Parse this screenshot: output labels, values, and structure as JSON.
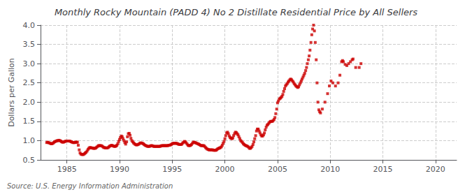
{
  "chart_data": {
    "type": "scatter",
    "title": "Monthly Rocky Mountain (PADD 4) No 2 Distillate Residential Price by All Sellers",
    "ylabel": "Dollars per Gallon",
    "annotation": "Source: U.S. Energy Information Administration",
    "color": "#cc0000",
    "marker": "square",
    "grid": true,
    "xlim": [
      1982.5,
      2022
    ],
    "ylim": [
      0.5,
      4.0
    ],
    "xticks": [
      1985,
      1990,
      1995,
      2000,
      2005,
      2010,
      2015,
      2020
    ],
    "yticks": [
      0.5,
      {
        "value": 1,
        "label": "1.0"
      },
      1.5,
      {
        "value": 2,
        "label": "2.0"
      },
      2.5,
      {
        "value": 3,
        "label": "3.0"
      },
      3.5,
      {
        "value": 4,
        "label": "4.0"
      }
    ],
    "x": [
      1983.08,
      1983.17,
      1983.25,
      1983.33,
      1983.42,
      1983.5,
      1983.58,
      1983.67,
      1983.75,
      1983.83,
      1983.92,
      1984.0,
      1984.08,
      1984.17,
      1984.25,
      1984.33,
      1984.42,
      1984.5,
      1984.58,
      1984.67,
      1984.75,
      1984.83,
      1984.92,
      1985.0,
      1985.08,
      1985.17,
      1985.25,
      1985.33,
      1985.42,
      1985.5,
      1985.58,
      1985.67,
      1985.75,
      1985.83,
      1985.92,
      1986.0,
      1986.08,
      1986.17,
      1986.25,
      1986.33,
      1986.42,
      1986.5,
      1986.58,
      1986.67,
      1986.75,
      1986.83,
      1986.92,
      1987.0,
      1987.08,
      1987.17,
      1987.25,
      1987.33,
      1987.42,
      1987.5,
      1987.58,
      1987.67,
      1987.75,
      1987.83,
      1987.92,
      1988.0,
      1988.08,
      1988.17,
      1988.25,
      1988.33,
      1988.42,
      1988.5,
      1988.58,
      1988.67,
      1988.75,
      1988.83,
      1988.92,
      1989.0,
      1989.08,
      1989.17,
      1989.25,
      1989.33,
      1989.42,
      1989.5,
      1989.58,
      1989.67,
      1989.75,
      1989.83,
      1989.92,
      1990.0,
      1990.08,
      1990.17,
      1990.25,
      1990.33,
      1990.42,
      1990.5,
      1990.58,
      1990.67,
      1990.75,
      1990.83,
      1990.92,
      1991.0,
      1991.08,
      1991.17,
      1991.25,
      1991.33,
      1991.42,
      1991.5,
      1991.58,
      1991.67,
      1991.75,
      1991.83,
      1991.92,
      1992.0,
      1992.08,
      1992.17,
      1992.25,
      1992.33,
      1992.42,
      1992.5,
      1992.58,
      1992.67,
      1992.75,
      1992.83,
      1992.92,
      1993.0,
      1993.08,
      1993.17,
      1993.25,
      1993.33,
      1993.42,
      1993.5,
      1993.58,
      1993.67,
      1993.75,
      1993.83,
      1993.92,
      1994.0,
      1994.08,
      1994.17,
      1994.25,
      1994.33,
      1994.42,
      1994.5,
      1994.58,
      1994.67,
      1994.75,
      1994.83,
      1994.92,
      1995.0,
      1995.08,
      1995.17,
      1995.25,
      1995.33,
      1995.42,
      1995.5,
      1995.58,
      1995.67,
      1995.75,
      1995.83,
      1995.92,
      1996.0,
      1996.08,
      1996.17,
      1996.25,
      1996.33,
      1996.42,
      1996.5,
      1996.58,
      1996.67,
      1996.75,
      1996.83,
      1996.92,
      1997.0,
      1997.08,
      1997.17,
      1997.25,
      1997.33,
      1997.42,
      1997.5,
      1997.58,
      1997.67,
      1997.75,
      1997.83,
      1997.92,
      1998.0,
      1998.08,
      1998.17,
      1998.25,
      1998.33,
      1998.42,
      1998.5,
      1998.58,
      1998.67,
      1998.75,
      1998.83,
      1998.92,
      1999.0,
      1999.08,
      1999.17,
      1999.25,
      1999.33,
      1999.42,
      1999.5,
      1999.58,
      1999.67,
      1999.75,
      1999.83,
      1999.92,
      2000.0,
      2000.08,
      2000.17,
      2000.25,
      2000.33,
      2000.42,
      2000.5,
      2000.58,
      2000.67,
      2000.75,
      2000.83,
      2000.92,
      2001.0,
      2001.08,
      2001.17,
      2001.25,
      2001.33,
      2001.42,
      2001.5,
      2001.58,
      2001.67,
      2001.75,
      2001.83,
      2001.92,
      2002.0,
      2002.08,
      2002.17,
      2002.25,
      2002.33,
      2002.42,
      2002.5,
      2002.58,
      2002.67,
      2002.75,
      2002.83,
      2002.92,
      2003.0,
      2003.08,
      2003.17,
      2003.25,
      2003.33,
      2003.42,
      2003.5,
      2003.58,
      2003.67,
      2003.75,
      2003.83,
      2003.92,
      2004.0,
      2004.08,
      2004.17,
      2004.25,
      2004.33,
      2004.42,
      2004.5,
      2004.58,
      2004.67,
      2004.75,
      2004.83,
      2004.92,
      2005.0,
      2005.08,
      2005.17,
      2005.25,
      2005.33,
      2005.42,
      2005.5,
      2005.58,
      2005.67,
      2005.75,
      2005.83,
      2005.92,
      2006.0,
      2006.08,
      2006.17,
      2006.25,
      2006.33,
      2006.42,
      2006.5,
      2006.58,
      2006.67,
      2006.75,
      2006.83,
      2006.92,
      2007.0,
      2007.08,
      2007.17,
      2007.25,
      2007.33,
      2007.42,
      2007.5,
      2007.58,
      2007.67,
      2007.75,
      2007.83,
      2007.92,
      2008.0,
      2008.08,
      2008.17,
      2008.25,
      2008.33,
      2008.42,
      2008.5,
      2008.58,
      2008.67,
      2008.75,
      2008.83,
      2008.92,
      2009.0,
      2009.08,
      2009.25,
      2009.5,
      2009.75,
      2009.92,
      2010.08,
      2010.25,
      2010.5,
      2010.75,
      2010.92,
      2011.08,
      2011.17,
      2011.25,
      2011.42,
      2011.58,
      2011.75,
      2011.92,
      2012.08,
      2012.17,
      2012.42,
      2012.75,
      2012.92
    ],
    "values": [
      0.95,
      0.96,
      0.95,
      0.94,
      0.93,
      0.92,
      0.92,
      0.93,
      0.95,
      0.97,
      0.98,
      0.99,
      1.0,
      1.0,
      1.01,
      1.0,
      0.99,
      0.97,
      0.96,
      0.96,
      0.97,
      0.98,
      0.99,
      0.99,
      0.99,
      0.99,
      0.99,
      0.98,
      0.97,
      0.96,
      0.95,
      0.95,
      0.95,
      0.96,
      0.96,
      0.96,
      0.88,
      0.76,
      0.68,
      0.65,
      0.64,
      0.64,
      0.64,
      0.66,
      0.68,
      0.7,
      0.73,
      0.77,
      0.8,
      0.82,
      0.82,
      0.81,
      0.81,
      0.8,
      0.8,
      0.8,
      0.81,
      0.83,
      0.85,
      0.87,
      0.87,
      0.87,
      0.87,
      0.86,
      0.84,
      0.82,
      0.82,
      0.81,
      0.81,
      0.81,
      0.82,
      0.84,
      0.86,
      0.87,
      0.88,
      0.87,
      0.86,
      0.85,
      0.85,
      0.86,
      0.88,
      0.92,
      0.98,
      1.03,
      1.08,
      1.12,
      1.1,
      1.05,
      1.0,
      0.95,
      0.91,
      0.97,
      1.1,
      1.18,
      1.19,
      1.14,
      1.06,
      1.0,
      0.97,
      0.94,
      0.92,
      0.9,
      0.89,
      0.89,
      0.9,
      0.91,
      0.93,
      0.94,
      0.94,
      0.93,
      0.92,
      0.9,
      0.88,
      0.87,
      0.86,
      0.85,
      0.85,
      0.85,
      0.86,
      0.87,
      0.87,
      0.86,
      0.85,
      0.85,
      0.85,
      0.85,
      0.85,
      0.85,
      0.85,
      0.85,
      0.86,
      0.87,
      0.87,
      0.87,
      0.87,
      0.87,
      0.87,
      0.87,
      0.87,
      0.88,
      0.88,
      0.89,
      0.9,
      0.92,
      0.93,
      0.93,
      0.93,
      0.93,
      0.93,
      0.92,
      0.91,
      0.9,
      0.9,
      0.9,
      0.91,
      0.94,
      0.96,
      0.98,
      0.97,
      0.94,
      0.91,
      0.88,
      0.87,
      0.87,
      0.88,
      0.9,
      0.93,
      0.96,
      0.96,
      0.95,
      0.94,
      0.93,
      0.92,
      0.91,
      0.9,
      0.88,
      0.87,
      0.87,
      0.87,
      0.87,
      0.85,
      0.82,
      0.8,
      0.78,
      0.77,
      0.76,
      0.76,
      0.76,
      0.76,
      0.76,
      0.75,
      0.75,
      0.75,
      0.75,
      0.77,
      0.79,
      0.8,
      0.81,
      0.82,
      0.84,
      0.88,
      0.93,
      0.98,
      1.05,
      1.13,
      1.2,
      1.22,
      1.18,
      1.12,
      1.08,
      1.06,
      1.05,
      1.07,
      1.13,
      1.18,
      1.22,
      1.21,
      1.18,
      1.15,
      1.1,
      1.05,
      1.0,
      0.98,
      0.95,
      0.92,
      0.9,
      0.88,
      0.87,
      0.86,
      0.85,
      0.83,
      0.8,
      0.8,
      0.82,
      0.85,
      0.9,
      0.97,
      1.05,
      1.13,
      1.25,
      1.3,
      1.3,
      1.25,
      1.2,
      1.15,
      1.12,
      1.12,
      1.15,
      1.2,
      1.28,
      1.35,
      1.4,
      1.42,
      1.45,
      1.48,
      1.5,
      1.5,
      1.5,
      1.52,
      1.55,
      1.6,
      1.7,
      1.82,
      1.98,
      2.03,
      2.08,
      2.1,
      2.12,
      2.15,
      2.2,
      2.28,
      2.35,
      2.42,
      2.45,
      2.48,
      2.52,
      2.55,
      2.58,
      2.6,
      2.58,
      2.55,
      2.52,
      2.48,
      2.45,
      2.42,
      2.4,
      2.38,
      2.4,
      2.45,
      2.5,
      2.55,
      2.6,
      2.65,
      2.7,
      2.75,
      2.82,
      2.9,
      3.0,
      3.1,
      3.2,
      3.35,
      3.55,
      3.75,
      3.9,
      4.0,
      3.85,
      3.55,
      3.1,
      2.5,
      2.0,
      1.8,
      1.75,
      1.72,
      1.82,
      2.0,
      2.22,
      2.42,
      2.55,
      2.5,
      2.42,
      2.5,
      2.7,
      3.05,
      3.08,
      3.05,
      2.98,
      2.95,
      3.0,
      3.05,
      3.1,
      3.12,
      2.9,
      2.9,
      3.0
    ]
  }
}
